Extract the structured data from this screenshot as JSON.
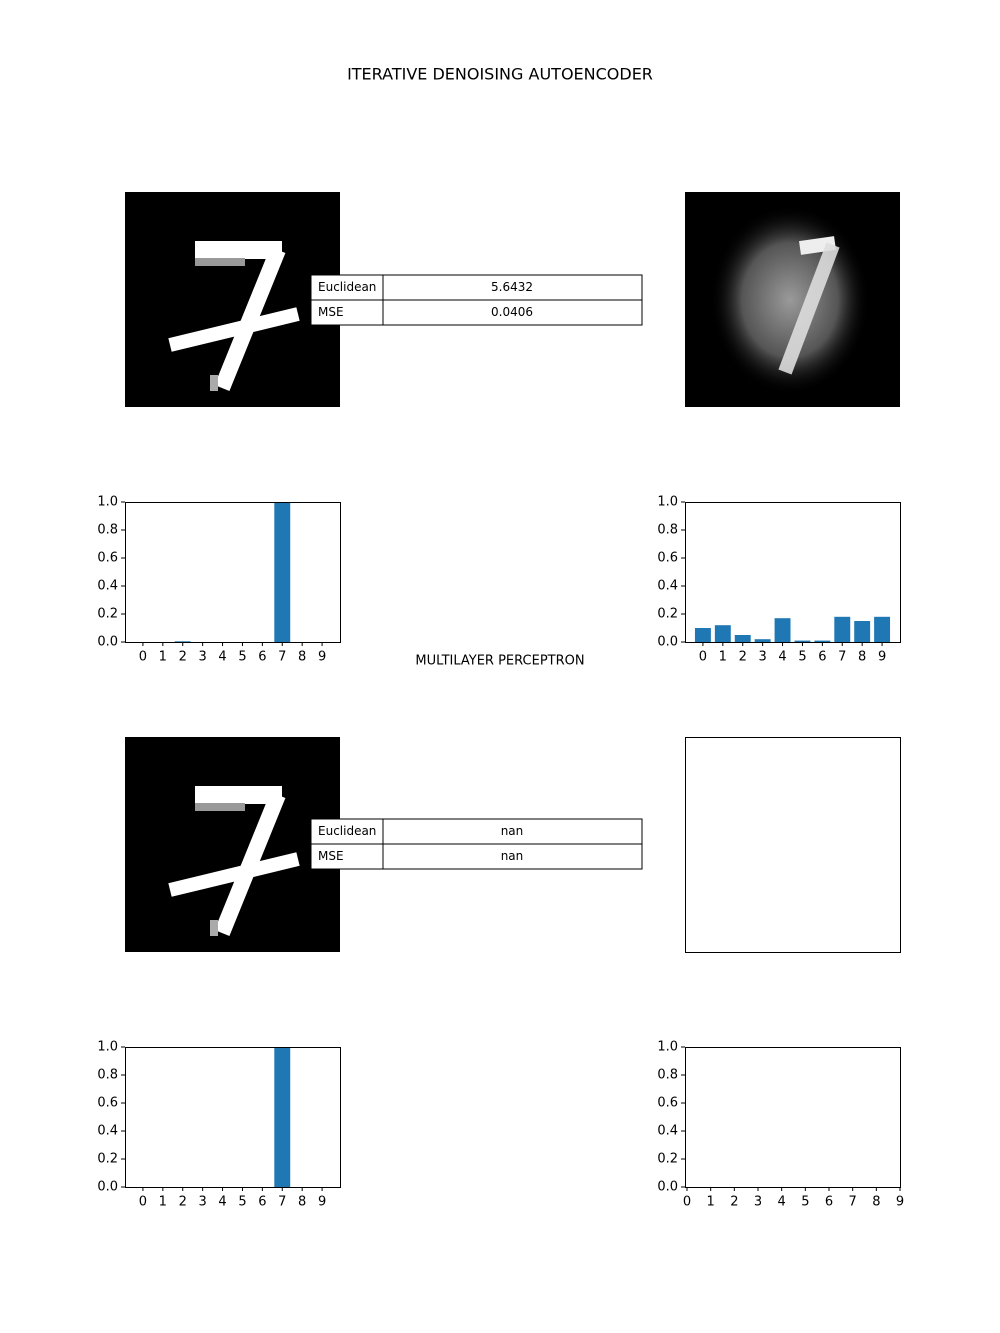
{
  "sections": [
    {
      "title": "ITERATIVE DENOISING AUTOENCODER",
      "table": {
        "rows": [
          [
            "Euclidean",
            "5.6432"
          ],
          [
            "MSE",
            "0.0406"
          ]
        ]
      }
    },
    {
      "title": "MULTILAYER PERCEPTRON",
      "table": {
        "rows": [
          [
            "Euclidean",
            "nan"
          ],
          [
            "MSE",
            "nan"
          ]
        ]
      }
    }
  ],
  "chart_data": [
    {
      "type": "bar",
      "color": "#1f77b4",
      "categories": [
        "0",
        "1",
        "2",
        "3",
        "4",
        "5",
        "6",
        "7",
        "8",
        "9"
      ],
      "values": [
        0,
        0,
        0.005,
        0,
        0,
        0,
        0,
        1.0,
        0,
        0
      ],
      "ylim": [
        0,
        1
      ],
      "yticks": [
        {
          "value": 0,
          "label": "0.0"
        },
        0.2,
        0.4,
        0.6,
        0.8,
        {
          "value": 1,
          "label": "1.0"
        }
      ]
    },
    {
      "type": "bar",
      "color": "#1f77b4",
      "categories": [
        "0",
        "1",
        "2",
        "3",
        "4",
        "5",
        "6",
        "7",
        "8",
        "9"
      ],
      "values": [
        0.1,
        0.12,
        0.05,
        0.02,
        0.17,
        0.01,
        0.01,
        0.18,
        0.15,
        0.18
      ],
      "ylim": [
        0,
        1
      ],
      "yticks": [
        {
          "value": 0,
          "label": "0.0"
        },
        0.2,
        0.4,
        0.6,
        0.8,
        {
          "value": 1,
          "label": "1.0"
        }
      ]
    },
    {
      "type": "bar",
      "color": "#1f77b4",
      "categories": [
        "0",
        "1",
        "2",
        "3",
        "4",
        "5",
        "6",
        "7",
        "8",
        "9"
      ],
      "values": [
        0,
        0,
        0,
        0,
        0,
        0,
        0,
        1.0,
        0,
        0
      ],
      "ylim": [
        0,
        1
      ],
      "yticks": [
        {
          "value": 0,
          "label": "0.0"
        },
        0.2,
        0.4,
        0.6,
        0.8,
        {
          "value": 1,
          "label": "1.0"
        }
      ]
    },
    {
      "type": "bar",
      "color": "#1f77b4",
      "xlim": [
        0,
        9
      ],
      "xticks": [
        0,
        1,
        2,
        3,
        4,
        5,
        6,
        7,
        8,
        9
      ],
      "ylim": [
        0,
        1
      ],
      "yticks": [
        {
          "value": 0,
          "label": "0.0"
        },
        0.2,
        0.4,
        0.6,
        0.8,
        {
          "value": 1,
          "label": "1.0"
        }
      ]
    }
  ]
}
